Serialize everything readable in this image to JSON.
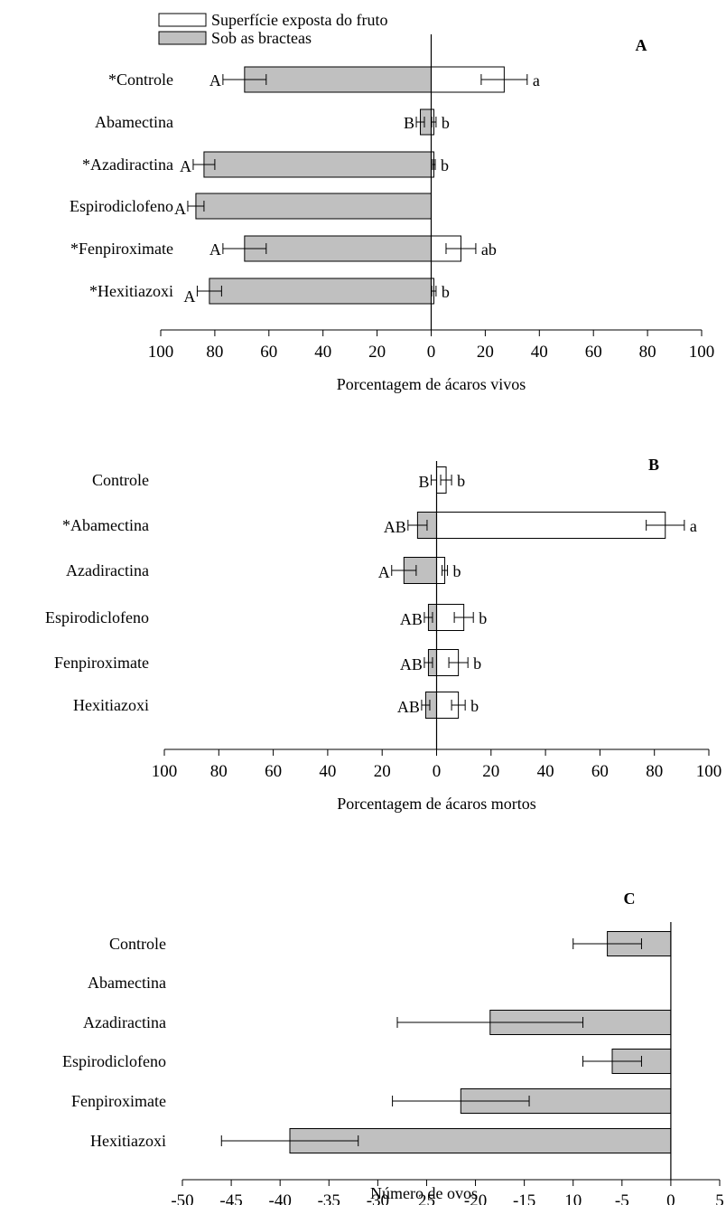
{
  "colors": {
    "fruit_surface": "#ffffff",
    "under_bracts": "#c0c0c0",
    "stroke": "#000000"
  },
  "legend": [
    {
      "label": "Superfície exposta do fruto",
      "color": "#ffffff"
    },
    {
      "label": "Sob as bracteas",
      "color": "#c0c0c0"
    }
  ],
  "chart_data": [
    {
      "panel": "A",
      "type": "bar",
      "orientation": "horizontal-diverging",
      "categories": [
        "*Controle",
        "Abamectina",
        "*Azadiractina",
        "Espirodiclofeno",
        "*Fenpiroximate",
        "*Hexitiazoxi"
      ],
      "xlabel": "Porcentagem de ácaros vivos",
      "xticks": [
        "100",
        "80",
        "60",
        "40",
        "20",
        "0",
        "20",
        "40",
        "60",
        "80",
        "100"
      ],
      "xlim": [
        -100,
        100
      ],
      "series": [
        {
          "name": "Sob as bracteas",
          "values": [
            69,
            4,
            84,
            87,
            69,
            82
          ],
          "errors": [
            8,
            1.5,
            4,
            3,
            8,
            4.5
          ],
          "letters": [
            "A",
            "B",
            "A",
            "A",
            "A",
            "A"
          ]
        },
        {
          "name": "Superfície exposta do fruto",
          "values": [
            27,
            1,
            1,
            0,
            11,
            1
          ],
          "errors": [
            8.5,
            0.8,
            0.5,
            0,
            5.5,
            0.8
          ],
          "letters": [
            "a",
            "b",
            "b",
            "",
            "ab",
            "b"
          ]
        }
      ]
    },
    {
      "panel": "B",
      "type": "bar",
      "orientation": "horizontal-diverging",
      "categories": [
        "Controle",
        "*Abamectina",
        "Azadiractina",
        "Espirodiclofeno",
        "Fenpiroximate",
        "Hexitiazoxi"
      ],
      "xlabel": "Porcentagem de ácaros mortos",
      "xticks": [
        "100",
        "80",
        "60",
        "40",
        "20",
        "0",
        "20",
        "40",
        "60",
        "80",
        "100"
      ],
      "xlim": [
        -100,
        100
      ],
      "series": [
        {
          "name": "Sob as bracteas",
          "values": [
            0,
            7,
            12,
            3,
            3,
            4
          ],
          "errors": [
            2,
            3.5,
            4.5,
            1.5,
            1.5,
            1.5
          ],
          "letters": [
            "B",
            "AB",
            "A",
            "AB",
            "AB",
            "AB"
          ]
        },
        {
          "name": "Superfície exposta do fruto",
          "values": [
            3.5,
            84,
            3,
            10,
            8,
            8
          ],
          "errors": [
            2,
            7,
            1,
            3.5,
            3.5,
            2.5
          ],
          "letters": [
            "b",
            "a",
            "b",
            "b",
            "b",
            "b"
          ]
        }
      ]
    },
    {
      "panel": "C",
      "type": "bar",
      "orientation": "horizontal",
      "categories": [
        "Controle",
        "Abamectina",
        "Azadiractina",
        "Espirodiclofeno",
        "Fenpiroximate",
        "Hexitiazoxi"
      ],
      "xlabel": "Número de ovos",
      "xticks": [
        "-50",
        "-45",
        "-40",
        "-35",
        "-30",
        "25",
        "-20",
        "-15",
        "10",
        "-5",
        "0",
        "5"
      ],
      "xlim": [
        -50,
        5
      ],
      "series": [
        {
          "name": "Sob as bracteas",
          "values": [
            -6.5,
            0,
            -18.5,
            -6,
            -21.5,
            -39
          ],
          "errors": [
            3.5,
            0,
            9.5,
            3,
            7,
            7
          ]
        }
      ]
    }
  ]
}
